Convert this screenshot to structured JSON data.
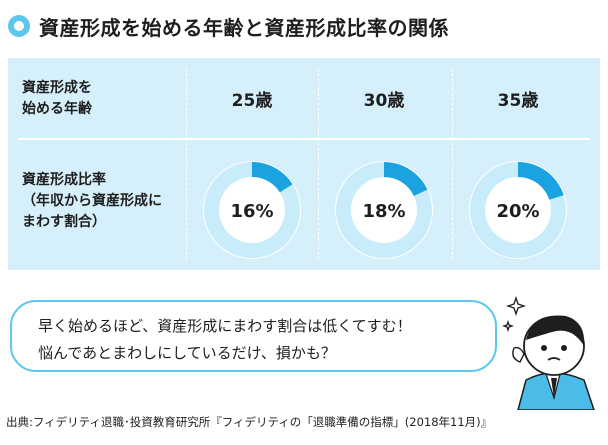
{
  "title": "資産形成を始める年齢と資産形成比率の関係",
  "table": {
    "row1_label": "資産形成を\n始める年齢",
    "row2_label": "資産形成比率\n（年収から資産形成に\nまわす割合）",
    "ages": [
      "25歳",
      "30歳",
      "35歳"
    ]
  },
  "chart_data": {
    "type": "pie",
    "title": "資産形成を始める年齢と資産形成比率の関係",
    "categories": [
      "25歳",
      "30歳",
      "35歳"
    ],
    "values": [
      16,
      18,
      20
    ],
    "labels": [
      "16%",
      "18%",
      "20%"
    ],
    "unit": "%",
    "xlabel": "資産形成を始める年齢",
    "ylabel": "資産形成比率（年収から資産形成にまわす割合）"
  },
  "speech": {
    "line1": "早く始めるほど、資産形成にまわす割合は低くてすむ！",
    "line2": "悩んであとまわしにしているだけ、損かも？"
  },
  "source": "出典:フィデリティ退職･投資教育研究所『フィデリティの「退職準備の指標」(2018年11月)』",
  "colors": {
    "accent": "#5cc6ee",
    "slice": "#1aa3e0",
    "ring": "#c9ecfa",
    "panel": "#d6f0fb"
  }
}
